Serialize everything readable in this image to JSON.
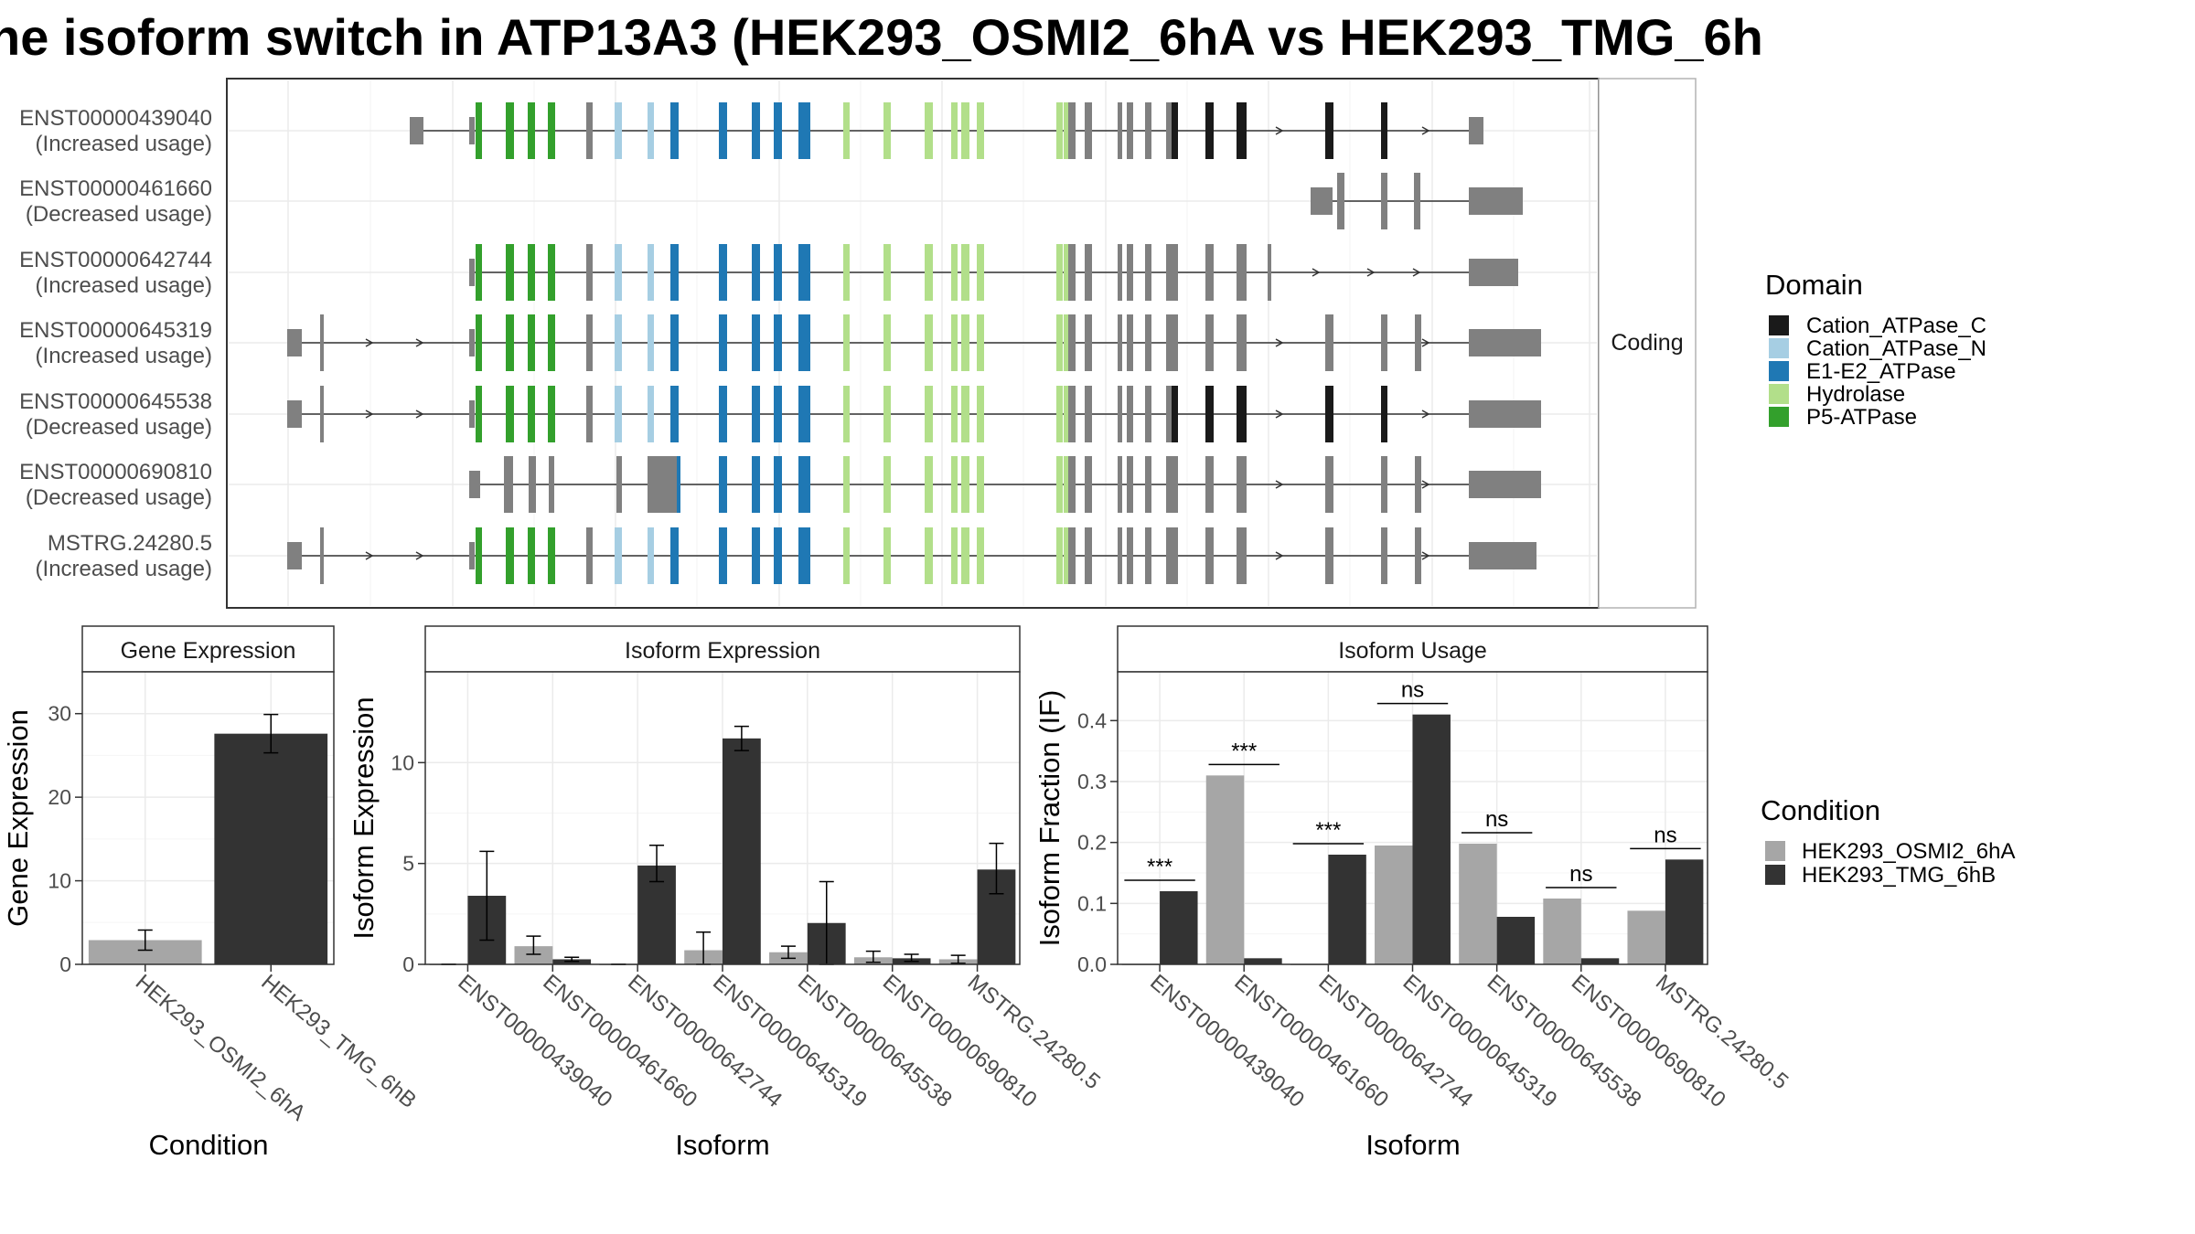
{
  "title": "he isoform switch in ATP13A3 (HEK293_OSMI2_6hA vs HEK293_TMG_6h",
  "colors": {
    "Cation_ATPase_C": "#1a1a1a",
    "Cation_ATPase_N": "#a6cee3",
    "E1-E2_ATPase": "#1f78b4",
    "Hydrolase": "#b2df8a",
    "P5-ATPase": "#33a02c",
    "non_domain": "#808080",
    "cond_a": "#a6a6a6",
    "cond_b": "#333333"
  },
  "transcript_panel": {
    "strip_label": "Coding",
    "legend_title": "Domain",
    "domains": [
      "Cation_ATPase_C",
      "Cation_ATPase_N",
      "E1-E2_ATPase",
      "Hydrolase",
      "P5-ATPase"
    ],
    "transcripts": [
      {
        "id": "ENST00000439040",
        "usage": "(Increased usage)"
      },
      {
        "id": "ENST00000461660",
        "usage": "(Decreased usage)"
      },
      {
        "id": "ENST00000642744",
        "usage": "(Increased usage)"
      },
      {
        "id": "ENST00000645319",
        "usage": "(Increased usage)"
      },
      {
        "id": "ENST00000645538",
        "usage": "(Decreased usage)"
      },
      {
        "id": "ENST00000690810",
        "usage": "(Decreased usage)"
      },
      {
        "id": "MSTRG.24280.5",
        "usage": "(Increased usage)"
      }
    ]
  },
  "condition_legend": {
    "title": "Condition",
    "items": [
      "HEK293_OSMI2_6hA",
      "HEK293_TMG_6hB"
    ]
  },
  "chart_data": [
    {
      "type": "bar",
      "title": "Gene Expression",
      "xlabel": "Condition",
      "ylabel": "Gene Expression",
      "ylim": [
        0,
        35
      ],
      "yticks": [
        0,
        10,
        20,
        30
      ],
      "categories": [
        "HEK293_OSMI2_6hA",
        "HEK293_TMG_6hB"
      ],
      "series": [
        {
          "values": [
            2.9,
            27.6
          ],
          "err_low": [
            1.7,
            25.3
          ],
          "err_high": [
            4.1,
            29.9
          ]
        }
      ]
    },
    {
      "type": "bar",
      "title": "Isoform Expression",
      "xlabel": "Isoform",
      "ylabel": "Isoform Expression",
      "ylim": [
        0,
        14.5
      ],
      "yticks": [
        0,
        5,
        10
      ],
      "categories": [
        "ENST00000439040",
        "ENST00000461660",
        "ENST00000642744",
        "ENST00000645319",
        "ENST00000645538",
        "ENST00000690810",
        "MSTRG.24280.5"
      ],
      "series": [
        {
          "name": "HEK293_OSMI2_6hA",
          "values": [
            0.0,
            0.9,
            0.0,
            0.7,
            0.6,
            0.35,
            0.25
          ],
          "err_low": [
            0.0,
            0.5,
            0.0,
            0.0,
            0.3,
            0.1,
            0.05
          ],
          "err_high": [
            0.0,
            1.4,
            0.0,
            1.6,
            0.9,
            0.65,
            0.45
          ]
        },
        {
          "name": "HEK293_TMG_6hB",
          "values": [
            3.4,
            0.25,
            4.9,
            11.2,
            2.05,
            0.3,
            4.7
          ],
          "err_low": [
            1.2,
            0.15,
            4.1,
            10.6,
            0.0,
            0.15,
            3.5
          ],
          "err_high": [
            5.6,
            0.35,
            5.9,
            11.8,
            4.1,
            0.5,
            6.0
          ]
        }
      ]
    },
    {
      "type": "bar",
      "title": "Isoform Usage",
      "xlabel": "Isoform",
      "ylabel": "Isoform Fraction (IF)",
      "ylim": [
        0,
        0.48
      ],
      "yticks": [
        "0.0",
        "0.1",
        "0.2",
        "0.3",
        "0.4"
      ],
      "categories": [
        "ENST00000439040",
        "ENST00000461660",
        "ENST00000642744",
        "ENST00000645319",
        "ENST00000645538",
        "ENST00000690810",
        "MSTRG.24280.5"
      ],
      "series": [
        {
          "name": "HEK293_OSMI2_6hA",
          "values": [
            0.0,
            0.31,
            0.0,
            0.195,
            0.198,
            0.108,
            0.088
          ]
        },
        {
          "name": "HEK293_TMG_6hB",
          "values": [
            0.12,
            0.01,
            0.18,
            0.41,
            0.078,
            0.01,
            0.172
          ]
        }
      ],
      "significance": [
        "***",
        "***",
        "***",
        "ns",
        "ns",
        "ns",
        "ns"
      ]
    }
  ]
}
